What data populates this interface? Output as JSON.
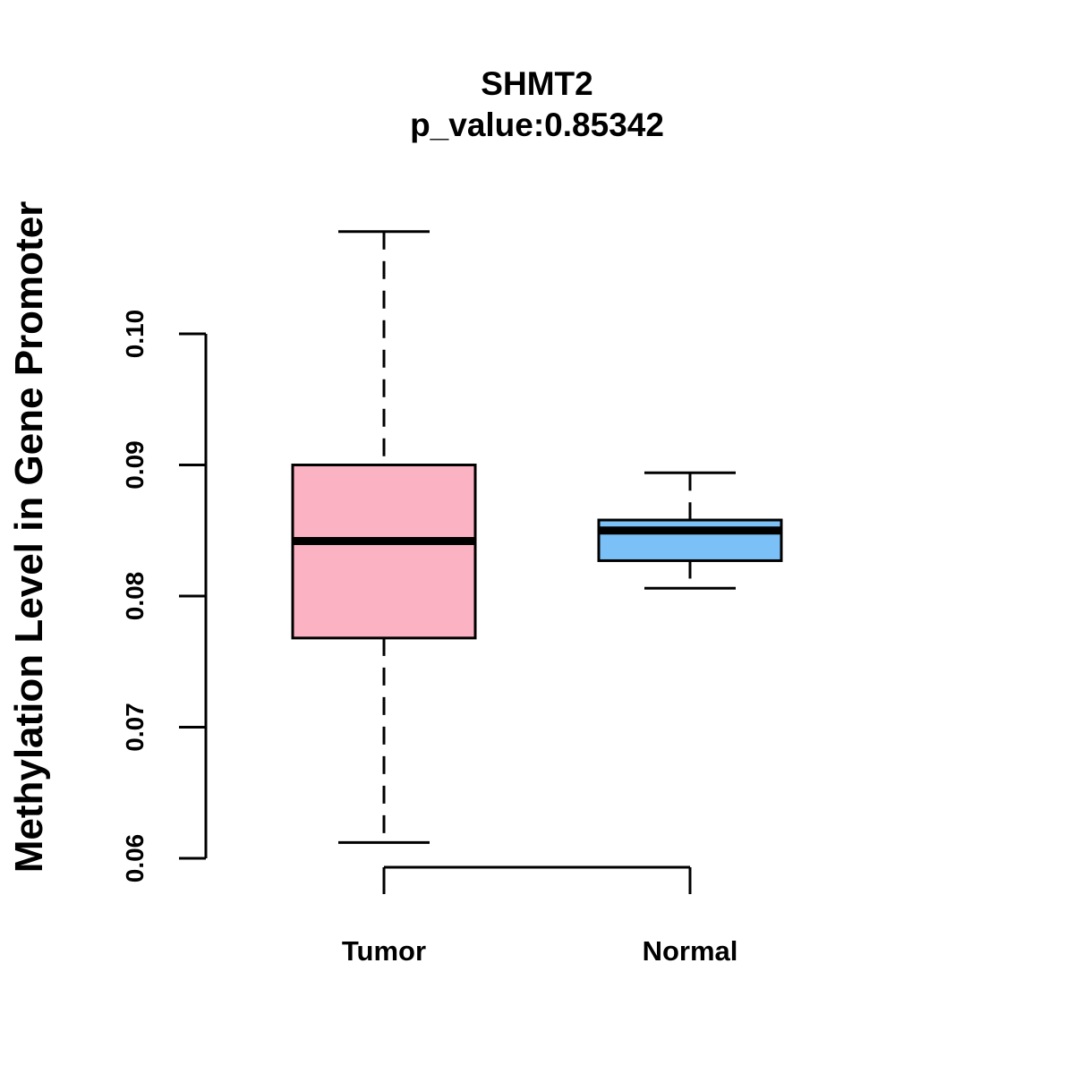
{
  "chart_data": {
    "type": "boxplot",
    "title": "SHMT2",
    "subtitle": "p_value:0.85342",
    "xlabel": "",
    "ylabel": "Methylation Level in Gene Promoter",
    "ylim": [
      0.06,
      0.1
    ],
    "yticks": [
      0.06,
      0.07,
      0.08,
      0.09,
      0.1
    ],
    "ytick_labels": [
      "0.06",
      "0.07",
      "0.08",
      "0.09",
      "0.10"
    ],
    "categories": [
      "Tumor",
      "Normal"
    ],
    "series": [
      {
        "name": "Tumor",
        "color": "#FBB2C3",
        "whisker_low": 0.0612,
        "q1": 0.0768,
        "median": 0.0842,
        "q3": 0.09,
        "whisker_high": 0.1078
      },
      {
        "name": "Normal",
        "color": "#7BC0F6",
        "whisker_low": 0.0806,
        "q1": 0.0827,
        "median": 0.085,
        "q3": 0.0858,
        "whisker_high": 0.0894
      }
    ],
    "grid": false,
    "legend": "none"
  }
}
